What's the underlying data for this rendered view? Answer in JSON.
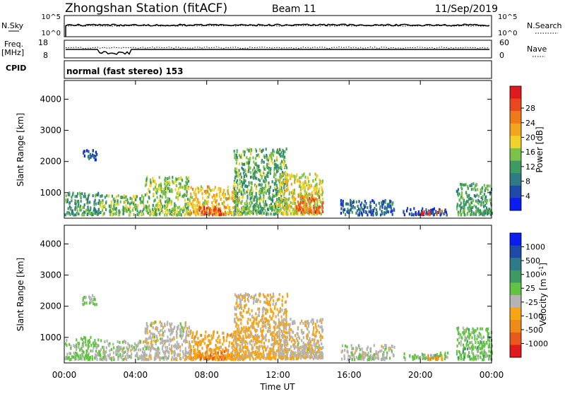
{
  "header": {
    "station": "Zhongshan Station (fitACF)",
    "beam": "Beam 11",
    "date": "11/Sep/2019"
  },
  "top_panels": {
    "nsky_label": "N.Sky",
    "nsky_ticks": [
      "10^5",
      "10^0"
    ],
    "nsearch_label": "N.Search",
    "nsearch_ticks": [
      "10^5",
      "10^0"
    ],
    "freq_label": "Freq.",
    "freq_unit": "[MHz]",
    "freq_ticks": [
      "18",
      "8"
    ],
    "nave_label": "Nave",
    "nave_ticks": [
      "60",
      "0"
    ],
    "cpid_label": "CPID",
    "cpid_value": "normal (fast stereo) 153"
  },
  "chart_data": [
    {
      "type": "heatmap",
      "name": "power",
      "xlabel": "",
      "ylabel": "Slant Range [km]",
      "x_ticks": [
        "00:00",
        "04:00",
        "08:00",
        "12:00",
        "16:00",
        "20:00",
        "00:00"
      ],
      "xlim_hours": [
        0,
        24
      ],
      "ylim": [
        180,
        4600
      ],
      "y_ticks": [
        1000,
        2000,
        3000,
        4000
      ],
      "colorbar": {
        "label": "Power [dB]",
        "ticks": [
          "4",
          "8",
          "12",
          "16",
          "20",
          "24",
          "28"
        ],
        "range": [
          0,
          30
        ],
        "colors": [
          "#0a1cf0",
          "#1f49a8",
          "#2e7a86",
          "#3d9a62",
          "#7cc24a",
          "#f0d22a",
          "#f3a51e",
          "#ef7a1a",
          "#e8481b",
          "#e0191c"
        ]
      },
      "scatter_regions": [
        {
          "t": [
            1.0,
            1.8
          ],
          "r": [
            2050,
            2350
          ],
          "value": 4
        },
        {
          "t": [
            0.0,
            2.0
          ],
          "r": [
            280,
            1000
          ],
          "value": 10
        },
        {
          "t": [
            2.0,
            4.5
          ],
          "r": [
            280,
            900
          ],
          "value": 13
        },
        {
          "t": [
            4.5,
            7.0
          ],
          "r": [
            280,
            1500
          ],
          "value": 14
        },
        {
          "t": [
            7.0,
            10.0
          ],
          "r": [
            280,
            1200
          ],
          "value": 18
        },
        {
          "t": [
            7.5,
            9.0
          ],
          "r": [
            280,
            550
          ],
          "value": 26
        },
        {
          "t": [
            9.5,
            12.5
          ],
          "r": [
            300,
            2400
          ],
          "value": 12
        },
        {
          "t": [
            12.0,
            14.5
          ],
          "r": [
            300,
            1600
          ],
          "value": 16
        },
        {
          "t": [
            13.0,
            14.5
          ],
          "r": [
            350,
            900
          ],
          "value": 24
        },
        {
          "t": [
            15.5,
            18.5
          ],
          "r": [
            280,
            750
          ],
          "value": 6
        },
        {
          "t": [
            19.0,
            21.5
          ],
          "r": [
            280,
            500
          ],
          "value": 5
        },
        {
          "t": [
            20.0,
            21.2
          ],
          "r": [
            280,
            420
          ],
          "value": 27
        },
        {
          "t": [
            22.0,
            24.0
          ],
          "r": [
            280,
            1300
          ],
          "value": 11
        }
      ]
    },
    {
      "type": "heatmap",
      "name": "velocity",
      "xlabel": "Time UT",
      "ylabel": "Slant Range [km]",
      "x_ticks": [
        "00:00",
        "04:00",
        "08:00",
        "12:00",
        "16:00",
        "20:00",
        "00:00"
      ],
      "xlim_hours": [
        0,
        24
      ],
      "ylim": [
        180,
        4600
      ],
      "y_ticks": [
        1000,
        2000,
        3000,
        4000
      ],
      "colorbar": {
        "label": "Velocity [m s^-1]",
        "ticks": [
          "1000",
          "500",
          "100",
          "25",
          "-25",
          "-100",
          "-500",
          "-1000"
        ],
        "range": [
          -1250,
          1250
        ],
        "colors": [
          "#0a1cf0",
          "#1f49a8",
          "#2e7a86",
          "#3d9a62",
          "#63c343",
          "#b4b4b4",
          "#f5a516",
          "#ef8a18",
          "#e85a1b",
          "#e0191c"
        ]
      },
      "scatter_regions": [
        {
          "t": [
            1.0,
            1.8
          ],
          "r": [
            2050,
            2350
          ],
          "value": 0
        },
        {
          "t": [
            0.0,
            2.0
          ],
          "r": [
            280,
            1000
          ],
          "value": 60
        },
        {
          "t": [
            2.0,
            4.5
          ],
          "r": [
            280,
            900
          ],
          "value": -80
        },
        {
          "t": [
            4.5,
            7.0
          ],
          "r": [
            280,
            1500
          ],
          "value": -150
        },
        {
          "t": [
            7.0,
            10.0
          ],
          "r": [
            280,
            1200
          ],
          "value": -400
        },
        {
          "t": [
            7.5,
            9.0
          ],
          "r": [
            280,
            550
          ],
          "value": -700
        },
        {
          "t": [
            9.5,
            12.5
          ],
          "r": [
            300,
            2400
          ],
          "value": -300
        },
        {
          "t": [
            12.0,
            14.5
          ],
          "r": [
            300,
            1600
          ],
          "value": -200
        },
        {
          "t": [
            13.0,
            14.5
          ],
          "r": [
            350,
            900
          ],
          "value": -150
        },
        {
          "t": [
            15.5,
            18.5
          ],
          "r": [
            280,
            750
          ],
          "value": -100
        },
        {
          "t": [
            19.0,
            21.5
          ],
          "r": [
            280,
            500
          ],
          "value": 80
        },
        {
          "t": [
            20.0,
            21.2
          ],
          "r": [
            280,
            420
          ],
          "value": -600
        },
        {
          "t": [
            22.0,
            24.0
          ],
          "r": [
            280,
            1300
          ],
          "value": 120
        }
      ]
    }
  ]
}
